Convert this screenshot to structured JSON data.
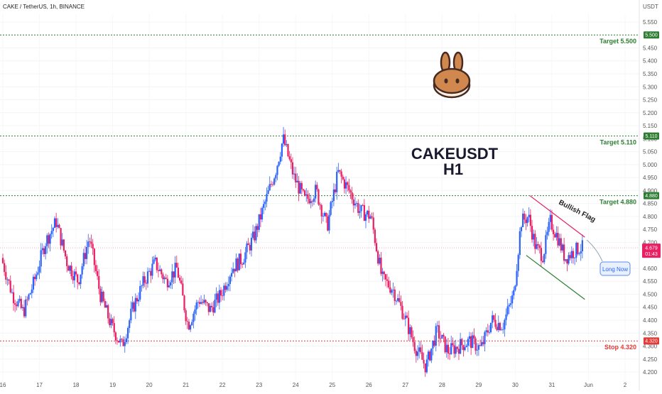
{
  "header": {
    "title": "CAKE / TetherUS, 1h, BINANCE",
    "currency": "USDT"
  },
  "annotations": {
    "symbol": "CAKEUSDT",
    "timeframe": "H1",
    "bullish_flag": "Bullish Flag",
    "long_now": "Long Now",
    "logo": "cake-bunny-icon"
  },
  "levels": [
    {
      "label": "Target 5.500",
      "value": 5.5,
      "badge": "5.500",
      "color": "#2e7d32"
    },
    {
      "label": "Target 5.110",
      "value": 5.11,
      "badge": "5.110",
      "color": "#2e7d32"
    },
    {
      "label": "Target 4.880",
      "value": 4.88,
      "badge": "4.880",
      "color": "#2e7d32"
    },
    {
      "label": "Stop 4.320",
      "value": 4.32,
      "badge": "4.320",
      "color": "#e53935"
    }
  ],
  "current_price": {
    "value": 4.679,
    "badge": "4.679",
    "countdown": "01:43",
    "color": "#e91e63"
  },
  "colors": {
    "up": "#2962ff",
    "down": "#e91e63",
    "target": "#2e7d32",
    "stop": "#e53935"
  },
  "chart_data": {
    "type": "candlestick",
    "title": "CAKE / TetherUS, 1h, BINANCE",
    "ylabel": "USDT",
    "ylim": [
      4.17,
      5.58
    ],
    "y_ticks": [
      "5.550",
      "5.450",
      "5.400",
      "5.350",
      "5.300",
      "5.250",
      "5.200",
      "5.150",
      "5.100",
      "5.050",
      "5.000",
      "4.950",
      "4.900",
      "4.850",
      "4.800",
      "4.750",
      "4.700",
      "4.600",
      "4.550",
      "4.500",
      "4.450",
      "4.400",
      "4.350",
      "4.300",
      "4.250",
      "4.200"
    ],
    "x_ticks": [
      "16",
      "17",
      "18",
      "19",
      "20",
      "21",
      "22",
      "23",
      "24",
      "25",
      "26",
      "27",
      "28",
      "29",
      "30",
      "31",
      "Jun",
      "2"
    ],
    "x_range": [
      16,
      33.0
    ],
    "close_series": {
      "x": [
        16.0,
        16.3,
        16.6,
        16.9,
        17.2,
        17.5,
        17.8,
        18.1,
        18.4,
        18.7,
        19.0,
        19.3,
        19.6,
        19.9,
        20.2,
        20.5,
        20.8,
        21.1,
        21.4,
        21.7,
        22.0,
        22.3,
        22.6,
        22.9,
        23.2,
        23.5,
        23.7,
        24.0,
        24.3,
        24.6,
        24.9,
        25.2,
        25.5,
        25.8,
        26.1,
        26.4,
        26.7,
        27.0,
        27.3,
        27.6,
        27.9,
        28.2,
        28.5,
        28.8,
        29.1,
        29.4,
        29.7,
        30.0,
        30.2,
        30.4,
        30.6,
        30.8,
        31.0,
        31.2,
        31.4,
        31.6,
        31.8
      ],
      "close": [
        4.64,
        4.5,
        4.43,
        4.55,
        4.7,
        4.78,
        4.62,
        4.55,
        4.72,
        4.5,
        4.38,
        4.3,
        4.45,
        4.55,
        4.62,
        4.55,
        4.6,
        4.38,
        4.48,
        4.44,
        4.5,
        4.6,
        4.64,
        4.72,
        4.85,
        4.98,
        5.1,
        4.95,
        4.86,
        4.9,
        4.76,
        4.97,
        4.9,
        4.82,
        4.8,
        4.56,
        4.52,
        4.42,
        4.3,
        4.22,
        4.36,
        4.28,
        4.3,
        4.32,
        4.29,
        4.4,
        4.38,
        4.5,
        4.78,
        4.8,
        4.68,
        4.65,
        4.78,
        4.72,
        4.64,
        4.66,
        4.679
      ]
    },
    "annotations": [
      {
        "text": "Target 5.500",
        "y": 5.5
      },
      {
        "text": "Target 5.110",
        "y": 5.11
      },
      {
        "text": "Target 4.880",
        "y": 4.88
      },
      {
        "text": "Stop 4.320",
        "y": 4.32
      },
      {
        "text": "Bullish Flag"
      },
      {
        "text": "Long Now"
      },
      {
        "text": "CAKEUSDT H1"
      }
    ]
  }
}
